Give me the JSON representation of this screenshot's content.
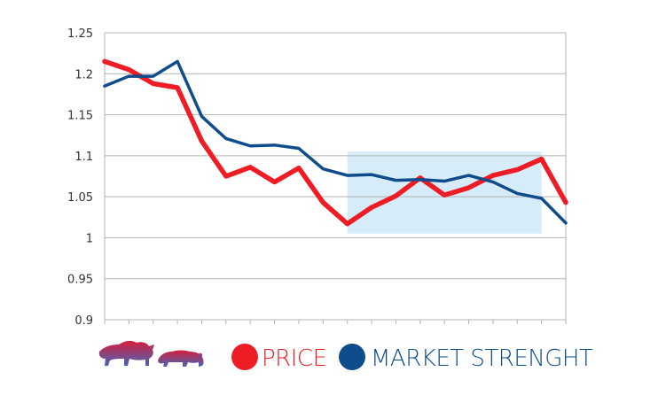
{
  "colors": {
    "price": "#ee1c25",
    "market_strength": "#0e4c8b",
    "highlight": "#d6ecf8",
    "grid": "#b3b3b3",
    "axis": "#b3b3b3",
    "logo_top": "#d41f3a",
    "logo_bottom": "#4a62b4"
  },
  "icons": {
    "logo": "bull-and-bear-logo-icon",
    "price_marker": "red-circle-icon",
    "market_marker": "blue-circle-icon"
  },
  "legend": {
    "price_label": "PRICE",
    "market_label": "MARKET STRENGHT"
  },
  "chart_data": {
    "type": "line",
    "x": [
      1,
      2,
      3,
      4,
      5,
      6,
      7,
      8,
      9,
      10,
      11,
      12,
      13,
      14,
      15,
      16,
      17,
      18,
      19,
      20
    ],
    "ylim": [
      0.9,
      1.25
    ],
    "yticks": [
      "0.9",
      "0.95",
      "1",
      "1.05",
      "1.1",
      "1.15",
      "1.2",
      "1.25"
    ],
    "grid": true,
    "legend_position": "bottom",
    "series": [
      {
        "name": "PRICE",
        "values": [
          1.215,
          1.205,
          1.188,
          1.183,
          1.118,
          1.075,
          1.086,
          1.068,
          1.085,
          1.043,
          1.017,
          1.037,
          1.051,
          1.073,
          1.052,
          1.061,
          1.076,
          1.083,
          1.096,
          1.043
        ]
      },
      {
        "name": "MARKET STRENGHT",
        "values": [
          1.185,
          1.197,
          1.197,
          1.215,
          1.148,
          1.121,
          1.112,
          1.113,
          1.109,
          1.084,
          1.076,
          1.077,
          1.07,
          1.071,
          1.069,
          1.076,
          1.068,
          1.054,
          1.048,
          1.018
        ]
      }
    ],
    "highlight_region": {
      "x_start": 11,
      "x_end": 19,
      "y_start": 1.005,
      "y_end": 1.105
    }
  }
}
